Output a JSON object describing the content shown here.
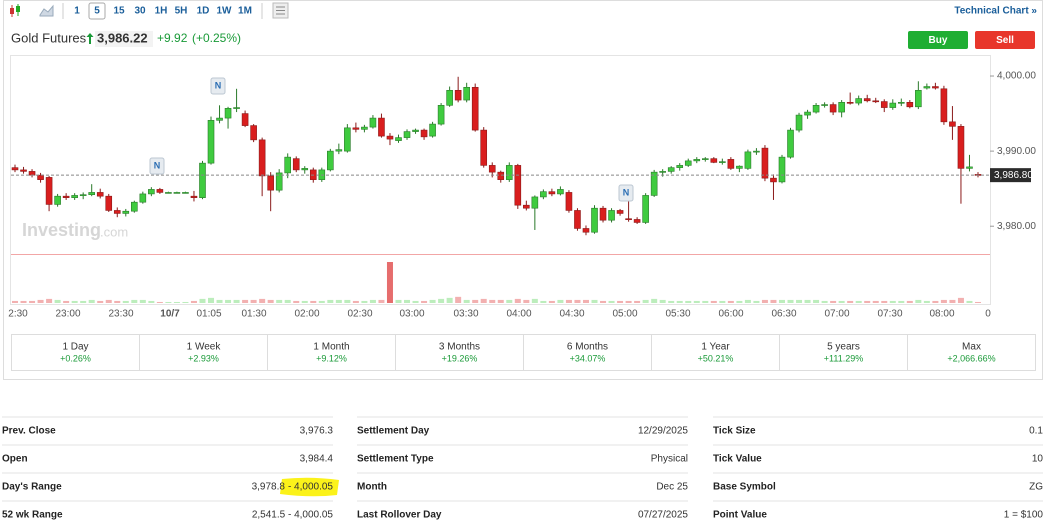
{
  "toolbar": {
    "timeframes": [
      "1",
      "5",
      "15",
      "30",
      "1H",
      "5H",
      "1D",
      "1W",
      "1M"
    ],
    "selected": 1,
    "link": "Technical Chart »"
  },
  "header": {
    "name": "Gold Futures",
    "price": "3,986.22",
    "change": "+9.92",
    "change_pct": "(+0.25%)",
    "buy": "Buy",
    "sell": "Sell"
  },
  "chart_data": {
    "type": "candlestick",
    "up_color": "#3fcb3f",
    "down_color": "#d91e1e",
    "ylim": [
      3976.3,
      4002.8
    ],
    "yticks": [
      {
        "value": 4000,
        "label": "4,000.00"
      },
      {
        "value": 3990,
        "label": "3,990.00"
      },
      {
        "value": 3980,
        "label": "3,980.00"
      }
    ],
    "last_price": {
      "value": 3986.8,
      "label": "3,986.80"
    },
    "watermark": [
      "Investing",
      ".com"
    ],
    "news_markers": [
      "N",
      "N",
      "N"
    ],
    "x_labels": [
      "2:30",
      "23:00",
      "23:30",
      "10/7",
      "01:05",
      "01:30",
      "02:00",
      "02:30",
      "03:00",
      "03:30",
      "04:00",
      "04:30",
      "05:00",
      "05:30",
      "06:00",
      "06:30",
      "07:00",
      "07:30",
      "08:00",
      "0"
    ],
    "candles": [
      [
        3987.8,
        3988.2,
        3987.2,
        3987.5
      ],
      [
        3987.5,
        3987.9,
        3987.0,
        3987.3
      ],
      [
        3987.3,
        3987.6,
        3986.5,
        3986.8
      ],
      [
        3986.8,
        3987.1,
        3985.8,
        3986.2
      ],
      [
        3986.5,
        3986.7,
        3982.0,
        3982.9
      ],
      [
        3982.9,
        3984.3,
        3982.6,
        3984.0
      ],
      [
        3984.0,
        3984.4,
        3983.5,
        3983.8
      ],
      [
        3983.8,
        3984.4,
        3983.5,
        3984.1
      ],
      [
        3984.1,
        3984.5,
        3983.6,
        3984.2
      ],
      [
        3984.2,
        3985.6,
        3984.0,
        3984.5
      ],
      [
        3984.5,
        3985.0,
        3983.7,
        3984.0
      ],
      [
        3984.0,
        3984.3,
        3981.9,
        3982.1
      ],
      [
        3982.1,
        3982.5,
        3981.2,
        3981.7
      ],
      [
        3981.7,
        3982.3,
        3981.3,
        3982.0
      ],
      [
        3982.0,
        3983.4,
        3981.8,
        3983.2
      ],
      [
        3983.2,
        3984.6,
        3983.0,
        3984.3
      ],
      [
        3984.3,
        3985.2,
        3984.0,
        3984.9
      ],
      [
        3984.9,
        3985.1,
        3984.3,
        3984.5
      ],
      [
        3984.5,
        3984.6,
        3984.4,
        3984.5
      ],
      [
        3984.5,
        3984.6,
        3984.4,
        3984.5
      ],
      [
        3984.5,
        3984.6,
        3984.4,
        3984.5
      ],
      [
        3984.0,
        3984.7,
        3983.3,
        3983.8
      ],
      [
        3983.8,
        3988.7,
        3983.6,
        3988.4
      ],
      [
        3988.4,
        3994.6,
        3988.2,
        3994.1
      ],
      [
        3994.1,
        3996.1,
        3993.7,
        3994.4
      ],
      [
        3994.4,
        3995.9,
        3993.0,
        3995.7
      ],
      [
        3995.7,
        3998.3,
        3995.2,
        3995.8
      ],
      [
        3995.0,
        3995.4,
        3993.2,
        3993.4
      ],
      [
        3993.4,
        3993.6,
        3991.2,
        3991.5
      ],
      [
        3991.5,
        3991.8,
        3984.0,
        3986.7
      ],
      [
        3986.7,
        3987.2,
        3982.0,
        3984.8
      ],
      [
        3984.8,
        3987.6,
        3984.5,
        3987.1
      ],
      [
        3987.1,
        3989.7,
        3986.4,
        3989.2
      ],
      [
        3989.0,
        3989.3,
        3987.2,
        3987.5
      ],
      [
        3987.5,
        3988.0,
        3987.0,
        3987.7
      ],
      [
        3987.5,
        3987.8,
        3985.8,
        3986.2
      ],
      [
        3986.2,
        3987.8,
        3985.9,
        3987.5
      ],
      [
        3987.5,
        3990.3,
        3987.3,
        3990.0
      ],
      [
        3990.0,
        3991.0,
        3989.6,
        3990.2
      ],
      [
        3990.0,
        3993.6,
        3989.8,
        3993.1
      ],
      [
        3993.1,
        3993.8,
        3992.5,
        3992.9
      ],
      [
        3992.9,
        3993.5,
        3992.5,
        3993.2
      ],
      [
        3993.2,
        3994.8,
        3993.0,
        3994.4
      ],
      [
        3994.4,
        3995.0,
        3991.8,
        3992.0
      ],
      [
        3992.0,
        3992.4,
        3990.8,
        3991.6
      ],
      [
        3991.4,
        3992.2,
        3991.1,
        3991.8
      ],
      [
        3991.8,
        3992.9,
        3991.5,
        3992.6
      ],
      [
        3992.6,
        3993.0,
        3992.3,
        3992.8
      ],
      [
        3992.8,
        3993.0,
        3991.5,
        3991.9
      ],
      [
        3992.0,
        3993.9,
        3991.8,
        3993.6
      ],
      [
        3993.6,
        3996.4,
        3993.4,
        3996.1
      ],
      [
        3996.1,
        3998.6,
        3995.9,
        3998.1
      ],
      [
        3998.1,
        3999.9,
        3996.5,
        3996.8
      ],
      [
        3996.8,
        3999.1,
        3996.5,
        3998.5
      ],
      [
        3998.5,
        3999.0,
        3992.6,
        3992.8
      ],
      [
        3992.8,
        3993.2,
        3987.8,
        3988.1
      ],
      [
        3988.1,
        3988.5,
        3986.5,
        3987.2
      ],
      [
        3987.2,
        3987.4,
        3985.8,
        3986.2
      ],
      [
        3986.2,
        3988.5,
        3985.9,
        3988.1
      ],
      [
        3988.1,
        3988.3,
        3982.3,
        3982.8
      ],
      [
        3982.8,
        3983.4,
        3982.1,
        3982.4
      ],
      [
        3982.4,
        3984.1,
        3979.5,
        3983.9
      ],
      [
        3983.9,
        3984.9,
        3983.6,
        3984.6
      ],
      [
        3984.6,
        3985.0,
        3984.0,
        3984.3
      ],
      [
        3984.3,
        3985.3,
        3984.1,
        3984.9
      ],
      [
        3984.5,
        3984.8,
        3981.8,
        3982.1
      ],
      [
        3982.1,
        3982.4,
        3979.4,
        3979.7
      ],
      [
        3979.7,
        3980.1,
        3978.8,
        3979.2
      ],
      [
        3979.2,
        3982.8,
        3979.0,
        3982.4
      ],
      [
        3982.4,
        3982.7,
        3980.5,
        3980.8
      ],
      [
        3980.8,
        3982.4,
        3980.5,
        3982.1
      ],
      [
        3982.1,
        3982.3,
        3981.4,
        3981.7
      ],
      [
        3981.0,
        3983.5,
        3980.6,
        3980.9
      ],
      [
        3980.9,
        3981.2,
        3980.3,
        3980.5
      ],
      [
        3980.5,
        3984.4,
        3980.3,
        3984.1
      ],
      [
        3984.1,
        3987.5,
        3983.9,
        3987.2
      ],
      [
        3987.2,
        3987.6,
        3986.6,
        3987.3
      ],
      [
        3987.3,
        3988.0,
        3987.0,
        3987.8
      ],
      [
        3987.8,
        3988.4,
        3987.4,
        3988.1
      ],
      [
        3988.1,
        3989.0,
        3987.9,
        3988.7
      ],
      [
        3988.7,
        3989.2,
        3988.4,
        3988.9
      ],
      [
        3988.9,
        3989.2,
        3988.6,
        3989.0
      ],
      [
        3989.0,
        3989.2,
        3988.4,
        3988.5
      ],
      [
        3988.5,
        3989.0,
        3988.2,
        3988.6
      ],
      [
        3988.9,
        3989.2,
        3987.5,
        3987.7
      ],
      [
        3987.7,
        3988.1,
        3987.2,
        3988.0
      ],
      [
        3987.7,
        3990.2,
        3987.5,
        3989.9
      ],
      [
        3989.9,
        3990.4,
        3989.5,
        3990.0
      ],
      [
        3990.4,
        3990.8,
        3986.0,
        3986.4
      ],
      [
        3986.4,
        3986.9,
        3983.5,
        3985.9
      ],
      [
        3985.9,
        3989.5,
        3985.7,
        3989.2
      ],
      [
        3989.2,
        3993.1,
        3989.0,
        3992.8
      ],
      [
        3992.8,
        3995.1,
        3992.5,
        3994.8
      ],
      [
        3994.8,
        3995.5,
        3994.3,
        3995.2
      ],
      [
        3995.2,
        3996.4,
        3995.0,
        3996.1
      ],
      [
        3996.1,
        3996.5,
        3995.8,
        3996.2
      ],
      [
        3996.2,
        3996.5,
        3994.8,
        3995.2
      ],
      [
        3995.2,
        3996.8,
        3994.5,
        3996.5
      ],
      [
        3996.5,
        3997.8,
        3996.2,
        3996.4
      ],
      [
        3996.4,
        3997.4,
        3996.1,
        3997.0
      ],
      [
        3997.0,
        3997.5,
        3996.5,
        3996.7
      ],
      [
        3996.7,
        3997.1,
        3996.4,
        3996.6
      ],
      [
        3996.6,
        3996.9,
        3995.2,
        3995.8
      ],
      [
        3995.8,
        3996.9,
        3995.5,
        3996.4
      ],
      [
        3996.4,
        3997.0,
        3996.0,
        3996.5
      ],
      [
        3996.5,
        3996.8,
        3995.7,
        3995.9
      ],
      [
        3995.9,
        3999.3,
        3995.6,
        3998.1
      ],
      [
        3998.4,
        3999.0,
        3998.2,
        3998.6
      ],
      [
        3998.6,
        3999.1,
        3998.2,
        3998.4
      ],
      [
        3998.3,
        3998.7,
        3993.5,
        3993.9
      ],
      [
        3993.9,
        3996.0,
        3991.5,
        3993.3
      ],
      [
        3993.3,
        3993.6,
        3983.0,
        3987.7
      ],
      [
        3987.7,
        3989.5,
        3987.3,
        3987.9
      ],
      [
        3986.9,
        3987.2,
        3986.5,
        3986.8
      ]
    ],
    "volumes": [
      2,
      2,
      2,
      3,
      4,
      3,
      2,
      2,
      2,
      3,
      2,
      3,
      2,
      2,
      3,
      3,
      2,
      1,
      1,
      1,
      1,
      2,
      4,
      5,
      3,
      3,
      3,
      3,
      3,
      4,
      3,
      3,
      3,
      2,
      2,
      2,
      2,
      3,
      3,
      3,
      2,
      2,
      3,
      3,
      40,
      3,
      3,
      2,
      2,
      3,
      4,
      5,
      6,
      3,
      3,
      4,
      3,
      3,
      3,
      4,
      3,
      4,
      2,
      2,
      3,
      3,
      3,
      3,
      3,
      2,
      2,
      2,
      2,
      2,
      3,
      4,
      3,
      2,
      2,
      2,
      2,
      2,
      2,
      2,
      2,
      2,
      3,
      2,
      3,
      3,
      3,
      3,
      3,
      3,
      3,
      2,
      2,
      2,
      2,
      2,
      2,
      2,
      2,
      2,
      2,
      2,
      3,
      2,
      2,
      3,
      3,
      5,
      2,
      1
    ]
  },
  "performance": [
    {
      "period": "1 Day",
      "change": "+0.26%"
    },
    {
      "period": "1 Week",
      "change": "+2.93%"
    },
    {
      "period": "1 Month",
      "change": "+9.12%"
    },
    {
      "period": "3 Months",
      "change": "+19.26%"
    },
    {
      "period": "6 Months",
      "change": "+34.07%"
    },
    {
      "period": "1 Year",
      "change": "+50.21%"
    },
    {
      "period": "5 years",
      "change": "+111.29%"
    },
    {
      "period": "Max",
      "change": "+2,066.66%"
    }
  ],
  "stats": [
    [
      {
        "label": "Prev. Close",
        "value": "3,976.3"
      },
      {
        "label": "Open",
        "value": "3,984.4"
      },
      {
        "label": "Day's Range",
        "value_parts": [
          "3,978.8",
          "- 4,000.05"
        ]
      },
      {
        "label": "52 wk Range",
        "value": "2,541.5 - 4,000.05"
      }
    ],
    [
      {
        "label": "Settlement Day",
        "value": "12/29/2025"
      },
      {
        "label": "Settlement Type",
        "value": "Physical"
      },
      {
        "label": "Month",
        "value": "Dec 25"
      },
      {
        "label": "Last Rollover Day",
        "value": "07/27/2025"
      }
    ],
    [
      {
        "label": "Tick Size",
        "value": "0.1"
      },
      {
        "label": "Tick Value",
        "value": "10"
      },
      {
        "label": "Base Symbol",
        "value": "ZG"
      },
      {
        "label": "Point Value",
        "value": "1 = $100"
      }
    ]
  ]
}
